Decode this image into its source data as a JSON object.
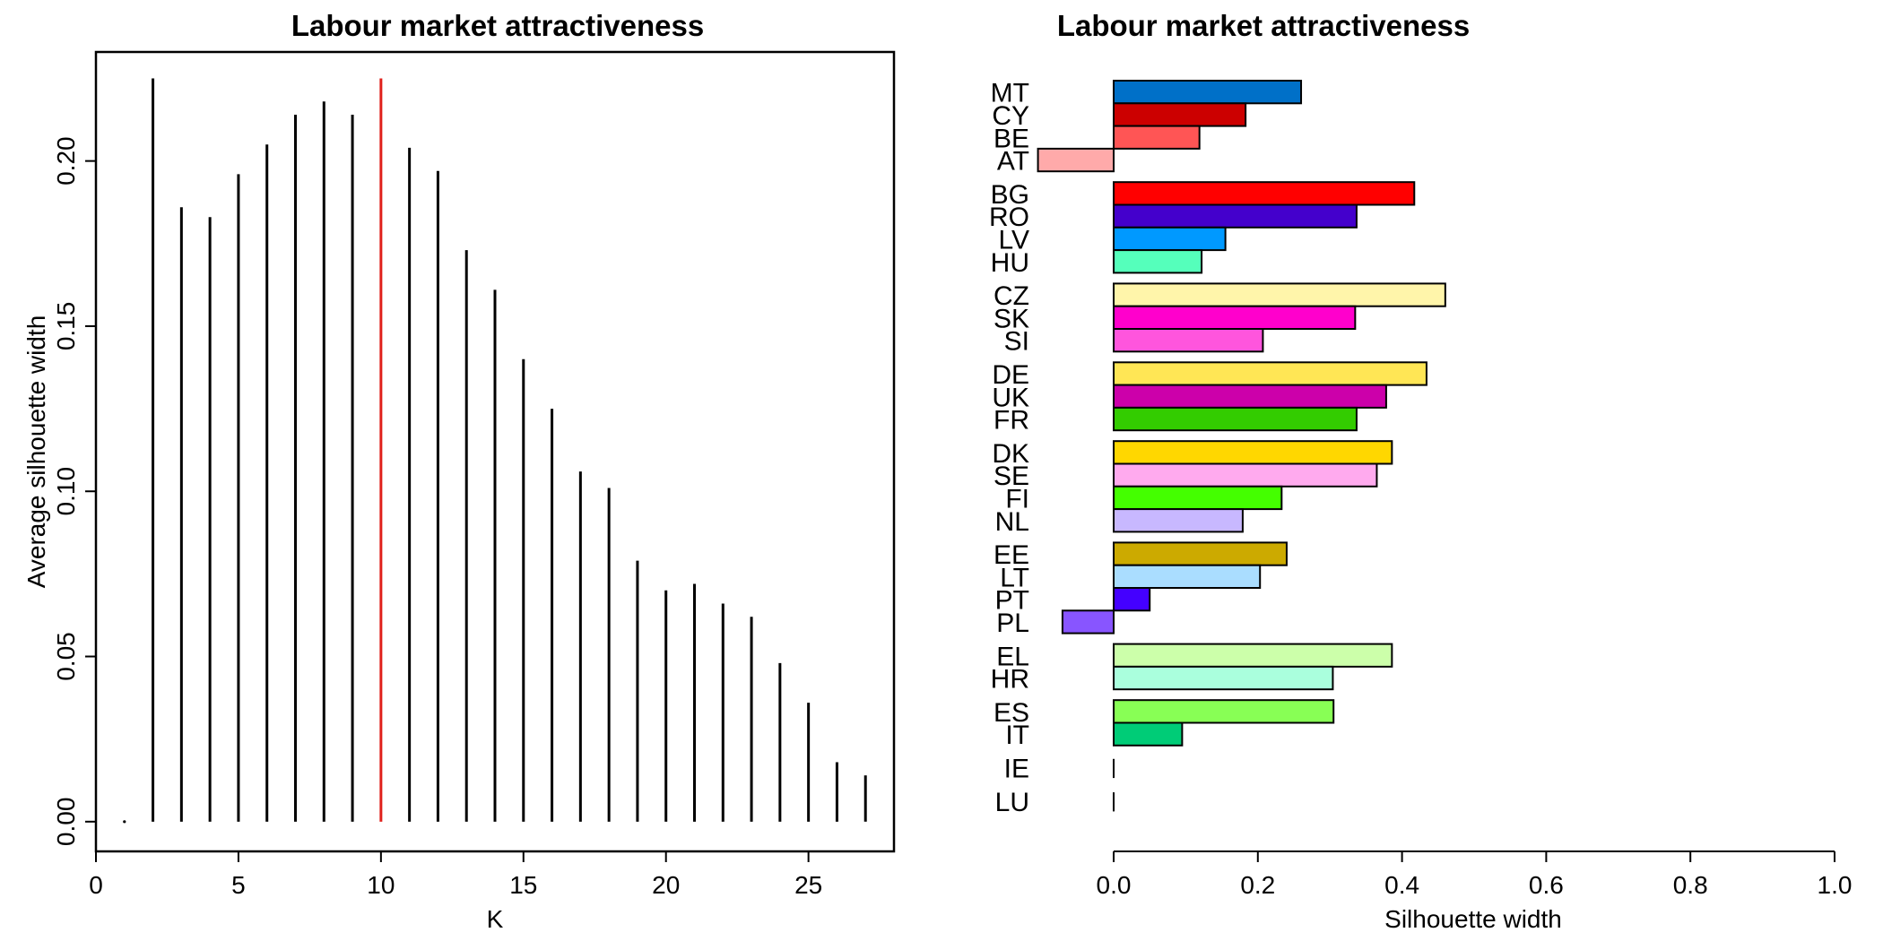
{
  "chart_data": [
    {
      "type": "bar",
      "subtype": "vertical-lines",
      "title": "Labour market attractiveness",
      "xlabel": "K",
      "ylabel": "Average silhouette width",
      "xlim": [
        0,
        28
      ],
      "ylim": [
        -0.009,
        0.233
      ],
      "x_ticks": [
        0,
        5,
        10,
        15,
        20,
        25
      ],
      "x_tick_labels": [
        "0",
        "5",
        "10",
        "15",
        "20",
        "25"
      ],
      "y_ticks": [
        0,
        0.05,
        0.1,
        0.15,
        0.2
      ],
      "y_tick_labels": [
        "0.00",
        "0.05",
        "0.10",
        "0.15",
        "0.20"
      ],
      "highlight_k": 10,
      "highlight_color": "#e0201b",
      "line_color": "#000000",
      "x": [
        1,
        2,
        3,
        4,
        5,
        6,
        7,
        8,
        9,
        10,
        11,
        12,
        13,
        14,
        15,
        16,
        17,
        18,
        19,
        20,
        21,
        22,
        23,
        24,
        25,
        26,
        27
      ],
      "values": [
        0.0,
        0.225,
        0.186,
        0.183,
        0.196,
        0.205,
        0.214,
        0.218,
        0.214,
        0.225,
        0.204,
        0.197,
        0.173,
        0.161,
        0.14,
        0.125,
        0.106,
        0.101,
        0.079,
        0.07,
        0.072,
        0.066,
        0.062,
        0.048,
        0.036,
        0.018,
        0.014
      ]
    },
    {
      "type": "bar",
      "subtype": "silhouette",
      "orientation": "horizontal",
      "title": "Labour market attractiveness",
      "xlabel": "Silhouette width",
      "xlim": [
        0,
        1
      ],
      "x_ticks": [
        0,
        0.2,
        0.4,
        0.6,
        0.8,
        1
      ],
      "x_tick_labels": [
        "0.0",
        "0.2",
        "0.4",
        "0.6",
        "0.8",
        "1.0"
      ],
      "clusters": [
        {
          "members": [
            {
              "label": "MT",
              "value": 0.26,
              "color": "#0070c8"
            },
            {
              "label": "CY",
              "value": 0.183,
              "color": "#cc0000"
            },
            {
              "label": "BE",
              "value": 0.119,
              "color": "#ff5555"
            },
            {
              "label": "AT",
              "value": -0.105,
              "color": "#ffaaaa"
            }
          ]
        },
        {
          "members": [
            {
              "label": "BG",
              "value": 0.417,
              "color": "#ff0000"
            },
            {
              "label": "RO",
              "value": 0.337,
              "color": "#4400cc"
            },
            {
              "label": "LV",
              "value": 0.155,
              "color": "#0099ff"
            },
            {
              "label": "HU",
              "value": 0.122,
              "color": "#55ffbb"
            }
          ]
        },
        {
          "members": [
            {
              "label": "CZ",
              "value": 0.46,
              "color": "#fff5aa"
            },
            {
              "label": "SK",
              "value": 0.335,
              "color": "#ff00cc"
            },
            {
              "label": "SI",
              "value": 0.207,
              "color": "#ff55dd"
            }
          ]
        },
        {
          "members": [
            {
              "label": "DE",
              "value": 0.434,
              "color": "#ffe655"
            },
            {
              "label": "UK",
              "value": 0.378,
              "color": "#cc00aa"
            },
            {
              "label": "FR",
              "value": 0.337,
              "color": "#33cc00"
            }
          ]
        },
        {
          "members": [
            {
              "label": "DK",
              "value": 0.386,
              "color": "#ffd700"
            },
            {
              "label": "SE",
              "value": 0.365,
              "color": "#ffaaee"
            },
            {
              "label": "FI",
              "value": 0.233,
              "color": "#44ff00"
            },
            {
              "label": "NL",
              "value": 0.179,
              "color": "#c8b8ff"
            }
          ]
        },
        {
          "members": [
            {
              "label": "EE",
              "value": 0.24,
              "color": "#ccaa00"
            },
            {
              "label": "LT",
              "value": 0.203,
              "color": "#aaddff"
            },
            {
              "label": "PT",
              "value": 0.05,
              "color": "#4400ff"
            },
            {
              "label": "PL",
              "value": -0.071,
              "color": "#8855ff"
            }
          ]
        },
        {
          "members": [
            {
              "label": "EL",
              "value": 0.386,
              "color": "#ccffaa"
            },
            {
              "label": "HR",
              "value": 0.304,
              "color": "#aaffdd"
            }
          ]
        },
        {
          "members": [
            {
              "label": "ES",
              "value": 0.305,
              "color": "#88ff55"
            },
            {
              "label": "IT",
              "value": 0.095,
              "color": "#00cc77"
            }
          ]
        },
        {
          "members": [
            {
              "label": "IE",
              "value": 0,
              "color": "#000000"
            }
          ]
        },
        {
          "members": [
            {
              "label": "LU",
              "value": 0,
              "color": "#000000"
            }
          ]
        }
      ]
    }
  ]
}
